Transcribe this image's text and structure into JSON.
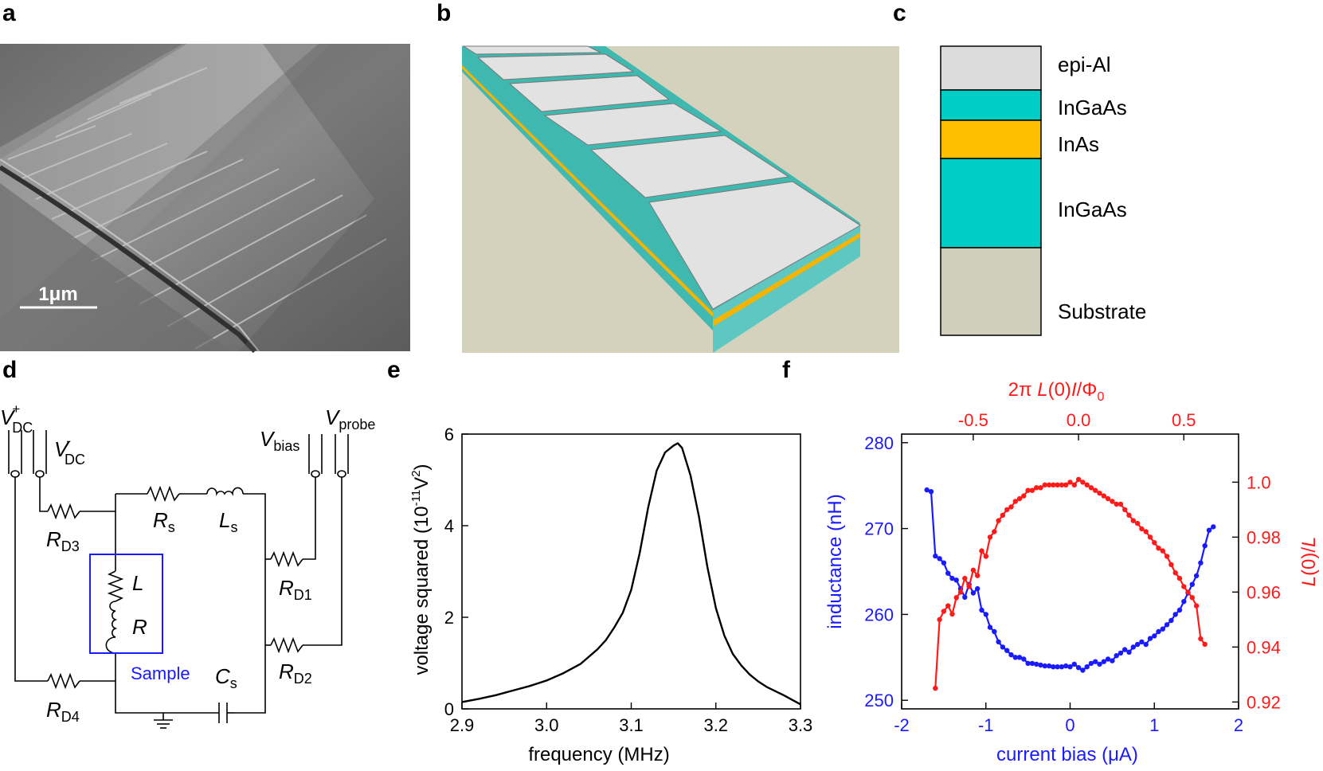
{
  "panels": {
    "a": {
      "letter": "a",
      "scale_bar": "1μm"
    },
    "b": {
      "letter": "b"
    },
    "c": {
      "letter": "c",
      "layers": [
        {
          "label": "epi-Al",
          "color": "#dcdcdc"
        },
        {
          "label": "InGaAs",
          "color": "#00cec6"
        },
        {
          "label": "InAs",
          "color": "#fdbf00"
        },
        {
          "label": "InGaAs",
          "color": "#00cec6"
        },
        {
          "label": "Substrate",
          "color": "#cfcfbb"
        }
      ]
    },
    "d": {
      "letter": "d",
      "labels": {
        "vdc_plus": {
          "main": "V",
          "sup": "+",
          "sub": "DC"
        },
        "vdc_minus": {
          "main": "V",
          "sup": "-",
          "sub": "DC"
        },
        "vbias": {
          "main": "V",
          "sub": "bias"
        },
        "vprobe": {
          "main": "V",
          "sub": "probe"
        },
        "rs": {
          "main": "R",
          "sub": "s"
        },
        "ls": {
          "main": "L",
          "sub": "s"
        },
        "rd3": {
          "main": "R",
          "sub": "D3"
        },
        "rd1": {
          "main": "R",
          "sub": "D1"
        },
        "rd2": {
          "main": "R",
          "sub": "D2"
        },
        "rd4": {
          "main": "R",
          "sub": "D4"
        },
        "cs": {
          "main": "C",
          "sub": "s"
        },
        "l": "L",
        "r": "R",
        "sample": "Sample"
      },
      "sample_color": "#1a1aff"
    },
    "e": {
      "letter": "e"
    },
    "f": {
      "letter": "f"
    }
  },
  "chart_data": [
    {
      "panel": "e",
      "type": "line",
      "xlabel": "frequency (MHz)",
      "ylabel": {
        "main": "voltage squared (10",
        "sup1": "-11",
        "mid": "V",
        "sup2": "2",
        "end": ")"
      },
      "xlim": [
        2.9,
        3.3
      ],
      "ylim": [
        0,
        6
      ],
      "xticks": [
        "2.9",
        "3.0",
        "3.1",
        "3.2",
        "3.3"
      ],
      "yticks": [
        "0",
        "2",
        "4",
        "6"
      ],
      "grid": false,
      "series": [
        {
          "color": "#000000",
          "x": [
            2.9,
            2.92,
            2.94,
            2.96,
            2.98,
            3.0,
            3.02,
            3.04,
            3.06,
            3.07,
            3.08,
            3.09,
            3.1,
            3.11,
            3.12,
            3.13,
            3.14,
            3.15,
            3.155,
            3.16,
            3.17,
            3.18,
            3.19,
            3.2,
            3.21,
            3.22,
            3.23,
            3.24,
            3.25,
            3.26,
            3.28,
            3.3
          ],
          "y": [
            0.15,
            0.22,
            0.3,
            0.4,
            0.5,
            0.62,
            0.78,
            0.98,
            1.3,
            1.5,
            1.78,
            2.1,
            2.6,
            3.4,
            4.4,
            5.2,
            5.6,
            5.75,
            5.8,
            5.7,
            5.1,
            4.2,
            3.1,
            2.2,
            1.6,
            1.2,
            0.95,
            0.75,
            0.6,
            0.48,
            0.3,
            0.1
          ]
        }
      ]
    },
    {
      "panel": "f",
      "type": "line",
      "xlabel": "current bias (μA)",
      "ylabel_left": "inductance (nH)",
      "ylabel_right": {
        "a": "L",
        "b": "(0)/",
        "c": "L"
      },
      "xlabel_top": {
        "a": "2π ",
        "b": "L",
        "c": "(0)",
        "d": "I",
        "e": "/Φ",
        "f": "0"
      },
      "xlim": [
        -2,
        2
      ],
      "ylim_left": [
        249,
        281
      ],
      "ylim_right": [
        0.9175,
        1.0175
      ],
      "xticks": [
        "-2",
        "-1",
        "0",
        "1",
        "2"
      ],
      "yticks_left": [
        "250",
        "260",
        "270",
        "280"
      ],
      "yticks_right": [
        "0.92",
        "0.94",
        "0.96",
        "0.98",
        "1.0"
      ],
      "xticks_top": [
        "-0.5",
        "0.0",
        "0.5"
      ],
      "xticks_top_pos": [
        -1.15,
        0.1,
        1.35
      ],
      "left_color": "#1a1aff",
      "right_color": "#ff1a1a",
      "grid": false,
      "series": [
        {
          "axis": "left",
          "color": "#1a1aff",
          "x": [
            -1.7,
            -1.65,
            -1.6,
            -1.55,
            -1.5,
            -1.45,
            -1.4,
            -1.35,
            -1.3,
            -1.25,
            -1.2,
            -1.15,
            -1.1,
            -1.05,
            -1.0,
            -0.95,
            -0.9,
            -0.85,
            -0.8,
            -0.75,
            -0.7,
            -0.65,
            -0.6,
            -0.55,
            -0.5,
            -0.45,
            -0.4,
            -0.35,
            -0.3,
            -0.25,
            -0.2,
            -0.15,
            -0.1,
            -0.05,
            0.0,
            0.05,
            0.1,
            0.15,
            0.2,
            0.25,
            0.3,
            0.35,
            0.4,
            0.45,
            0.5,
            0.55,
            0.6,
            0.65,
            0.7,
            0.75,
            0.8,
            0.85,
            0.9,
            0.95,
            1.0,
            1.05,
            1.1,
            1.15,
            1.2,
            1.25,
            1.3,
            1.35,
            1.4,
            1.45,
            1.5,
            1.55,
            1.6,
            1.65,
            1.7
          ],
          "y": [
            274.5,
            274.3,
            266.8,
            266.5,
            266.0,
            264.8,
            264.2,
            264.0,
            263.0,
            262.0,
            263.5,
            262.5,
            263.0,
            260.5,
            260.0,
            258.5,
            258.0,
            256.8,
            256.2,
            255.8,
            255.3,
            255.0,
            255.0,
            254.8,
            254.3,
            254.3,
            254.2,
            254.1,
            254.0,
            254.0,
            253.9,
            253.9,
            253.9,
            254.0,
            253.9,
            254.2,
            253.8,
            253.5,
            253.9,
            254.3,
            254.5,
            254.2,
            254.5,
            254.8,
            254.6,
            255.2,
            255.5,
            255.9,
            255.6,
            256.2,
            256.5,
            256.8,
            256.5,
            257.2,
            257.5,
            258.0,
            258.3,
            258.8,
            259.3,
            260.0,
            260.5,
            261.5,
            262.5,
            263.5,
            264.5,
            266.0,
            268.0,
            269.8,
            270.2
          ]
        },
        {
          "axis": "right",
          "color": "#ff1a1a",
          "x": [
            -1.6,
            -1.55,
            -1.5,
            -1.45,
            -1.4,
            -1.35,
            -1.3,
            -1.25,
            -1.2,
            -1.15,
            -1.1,
            -1.05,
            -1.0,
            -0.95,
            -0.9,
            -0.85,
            -0.8,
            -0.75,
            -0.7,
            -0.65,
            -0.6,
            -0.55,
            -0.5,
            -0.45,
            -0.4,
            -0.35,
            -0.3,
            -0.25,
            -0.2,
            -0.15,
            -0.1,
            -0.05,
            0.0,
            0.05,
            0.1,
            0.15,
            0.2,
            0.25,
            0.3,
            0.35,
            0.4,
            0.45,
            0.5,
            0.55,
            0.6,
            0.65,
            0.7,
            0.75,
            0.8,
            0.85,
            0.9,
            0.95,
            1.0,
            1.05,
            1.1,
            1.15,
            1.2,
            1.25,
            1.3,
            1.35,
            1.4,
            1.45,
            1.5,
            1.55,
            1.6
          ],
          "y": [
            0.925,
            0.95,
            0.953,
            0.955,
            0.952,
            0.958,
            0.96,
            0.965,
            0.962,
            0.968,
            0.966,
            0.975,
            0.973,
            0.98,
            0.982,
            0.986,
            0.988,
            0.99,
            0.991,
            0.993,
            0.994,
            0.995,
            0.997,
            0.997,
            0.998,
            0.998,
            0.999,
            0.999,
            0.999,
            0.999,
            0.999,
            0.999,
            1.0,
            0.999,
            1.001,
            1.0,
            0.999,
            0.998,
            0.997,
            0.996,
            0.995,
            0.994,
            0.993,
            0.992,
            0.992,
            0.99,
            0.988,
            0.986,
            0.985,
            0.983,
            0.982,
            0.98,
            0.978,
            0.976,
            0.975,
            0.973,
            0.97,
            0.967,
            0.965,
            0.962,
            0.96,
            0.958,
            0.955,
            0.943,
            0.941
          ]
        }
      ]
    }
  ]
}
